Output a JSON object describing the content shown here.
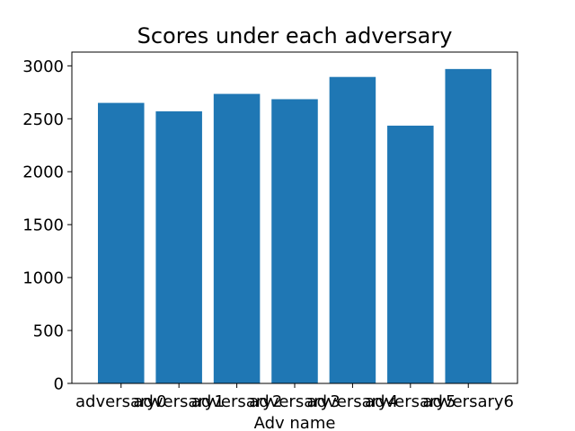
{
  "chart_data": {
    "type": "bar",
    "title": "Scores under each adversary",
    "xlabel": "Adv name",
    "ylabel": "",
    "categories": [
      "adversary0",
      "adversary1",
      "adversary2",
      "adversary3",
      "adversary4",
      "adversary5",
      "adversary6"
    ],
    "values": [
      2650,
      2570,
      2735,
      2685,
      2895,
      2435,
      2970
    ],
    "ylim": [
      0,
      3130
    ],
    "yticks": [
      0,
      500,
      1000,
      1500,
      2000,
      2500,
      3000
    ],
    "grid": false,
    "legend": "none",
    "bar_color": "#1f77b4"
  }
}
